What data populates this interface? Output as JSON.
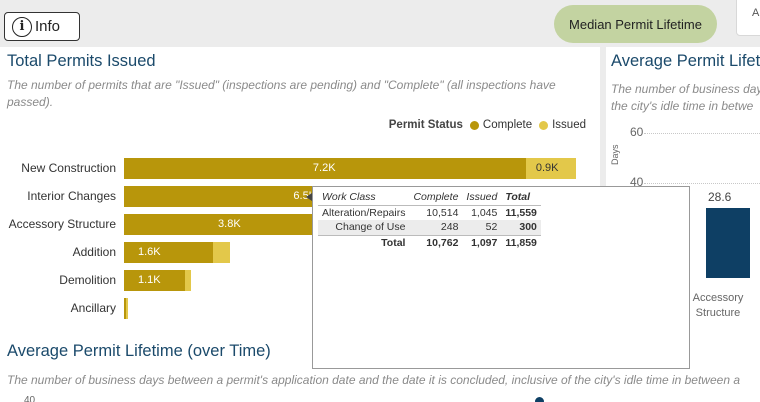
{
  "info_button": {
    "label": "Info",
    "icon": "info-icon"
  },
  "pill_button": {
    "label": "Median Permit Lifetime"
  },
  "top_right_stub": {
    "text": "A"
  },
  "panel1": {
    "title": "Total Permits Issued",
    "subtitle": "The number of permits that are \"Issued\" (inspections are pending) and \"Complete\" (all inspections have passed).",
    "legend": {
      "title": "Permit Status",
      "complete": "Complete",
      "issued": "Issued"
    },
    "colors": {
      "complete": "#b8960b",
      "issued": "#e3c84a"
    }
  },
  "chart_data": {
    "type": "bar",
    "orientation": "horizontal",
    "stacked": true,
    "title": "Total Permits Issued",
    "categories": [
      "New Construction",
      "Interior Changes",
      "Accessory Structure",
      "Addition",
      "Demolition",
      "Ancillary"
    ],
    "series": [
      {
        "name": "Complete",
        "values": [
          7200,
          6500,
          3800,
          1600,
          1100,
          40
        ],
        "labels": [
          "7.2K",
          "6.5K",
          "3.8K",
          "1.6K",
          "1.1K",
          ""
        ]
      },
      {
        "name": "Issued",
        "values": [
          900,
          700,
          500,
          300,
          100,
          10
        ],
        "labels": [
          "0.9K",
          "",
          "",
          "",
          "",
          ""
        ]
      }
    ],
    "xlim": [
      0,
      8600
    ],
    "legend": "top-right"
  },
  "panel2": {
    "title": "Average Permit Lifetime",
    "subtitle_line1": "The number of business days",
    "subtitle_line2": "the city's idle time in betwe",
    "y_ticks": [
      "60",
      "40"
    ],
    "y_label": "Days",
    "bar_value": "28.6",
    "x_category_line1": "Accessory",
    "x_category_line2": "Structure"
  },
  "panel3": {
    "title": "Average Permit Lifetime (over Time)",
    "subtitle": "The number of business days between a permit's application date and the date it is concluded, inclusive of the city's idle time in between a",
    "first_tick": "40"
  },
  "tooltip": {
    "headers": {
      "work_class": "Work Class",
      "complete": "Complete",
      "issued": "Issued",
      "total": "Total"
    },
    "rows": [
      {
        "work_class": "Alteration/Repairs",
        "complete": "10,514",
        "issued": "1,045",
        "total": "11,559"
      },
      {
        "work_class": "Change of Use",
        "complete": "248",
        "issued": "52",
        "total": "300"
      }
    ],
    "total_row": {
      "label": "Total",
      "complete": "10,762",
      "issued": "1,097",
      "total": "11,859"
    }
  }
}
